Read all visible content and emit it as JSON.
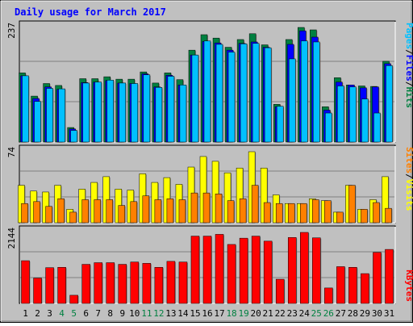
{
  "colors": {
    "background": "#c0c0c0",
    "title": "#0000ff",
    "pages": "#00c0ff",
    "files": "#0000ff",
    "hits": "#008040",
    "visits": "#ffff00",
    "sites": "#ff8000",
    "kbytes": "#ff0000",
    "weekend_label": "#008040",
    "weekday_label": "#000000"
  },
  "chart_data": [
    {
      "type": "bar",
      "title": "Daily usage for March 2017",
      "ylabel_parts": [
        "Pages",
        "/",
        "Files",
        "/",
        "Hits"
      ],
      "ymax_label": "237",
      "ylim": [
        0,
        237
      ],
      "legend_placement": "right",
      "grid": true,
      "categories": [
        "1",
        "2",
        "3",
        "4",
        "5",
        "6",
        "7",
        "8",
        "9",
        "10",
        "11",
        "12",
        "13",
        "14",
        "15",
        "16",
        "17",
        "18",
        "19",
        "20",
        "21",
        "22",
        "23",
        "24",
        "25",
        "26",
        "27",
        "28",
        "29",
        "30",
        "31"
      ],
      "weekend_days": [
        "4",
        "5",
        "11",
        "12",
        "18",
        "19",
        "25",
        "26"
      ],
      "series": [
        {
          "name": "Hits",
          "values": [
            143,
            95,
            121,
            117,
            30,
            131,
            131,
            135,
            130,
            130,
            145,
            122,
            143,
            129,
            190,
            222,
            215,
            196,
            212,
            224,
            201,
            78,
            212,
            237,
            232,
            73,
            133,
            118,
            116,
            115,
            167
          ]
        },
        {
          "name": "Files",
          "values": [
            137,
            90,
            114,
            109,
            27,
            123,
            124,
            127,
            122,
            121,
            141,
            114,
            138,
            118,
            180,
            208,
            205,
            190,
            204,
            207,
            196,
            73,
            202,
            230,
            217,
            66,
            124,
            118,
            112,
            114,
            162
          ]
        },
        {
          "name": "Pages",
          "values": [
            137,
            84,
            111,
            110,
            24,
            122,
            124,
            128,
            122,
            121,
            139,
            113,
            136,
            118,
            180,
            209,
            202,
            186,
            203,
            204,
            195,
            74,
            172,
            209,
            207,
            60,
            116,
            114,
            89,
            60,
            158
          ]
        }
      ]
    },
    {
      "type": "bar",
      "ylabel_parts": [
        "Sites",
        "/",
        "Visits"
      ],
      "ymax_label": "74",
      "ylim": [
        0,
        74
      ],
      "grid": true,
      "categories": [
        "1",
        "2",
        "3",
        "4",
        "5",
        "6",
        "7",
        "8",
        "9",
        "10",
        "11",
        "12",
        "13",
        "14",
        "15",
        "16",
        "17",
        "18",
        "19",
        "20",
        "21",
        "22",
        "23",
        "24",
        "25",
        "26",
        "27",
        "28",
        "29",
        "30",
        "31"
      ],
      "series": [
        {
          "name": "Visits",
          "values": [
            39,
            33,
            32,
            39,
            14,
            35,
            42,
            48,
            35,
            34,
            51,
            42,
            47,
            40,
            58,
            69,
            64,
            52,
            57,
            74,
            57,
            29,
            20,
            20,
            25,
            23,
            11,
            39,
            14,
            24,
            48
          ]
        },
        {
          "name": "Sites",
          "values": [
            20,
            22,
            17,
            25,
            11,
            24,
            24,
            24,
            18,
            22,
            28,
            24,
            25,
            24,
            31,
            31,
            30,
            23,
            25,
            39,
            21,
            20,
            20,
            20,
            24,
            23,
            11,
            39,
            14,
            21,
            15
          ]
        }
      ]
    },
    {
      "type": "bar",
      "ylabel_parts": [
        "KBytes"
      ],
      "ymax_label": "2144",
      "ylim": [
        0,
        2144
      ],
      "grid": true,
      "categories": [
        "1",
        "2",
        "3",
        "4",
        "5",
        "6",
        "7",
        "8",
        "9",
        "10",
        "11",
        "12",
        "13",
        "14",
        "15",
        "16",
        "17",
        "18",
        "19",
        "20",
        "21",
        "22",
        "23",
        "24",
        "25",
        "26",
        "27",
        "28",
        "29",
        "30",
        "31"
      ],
      "series": [
        {
          "name": "KBytes",
          "values": [
            1290,
            766,
            1080,
            1090,
            246,
            1180,
            1230,
            1230,
            1180,
            1250,
            1210,
            1090,
            1270,
            1250,
            2032,
            2032,
            2085,
            1780,
            1970,
            2032,
            1880,
            730,
            1990,
            2144,
            1980,
            466,
            1110,
            1090,
            900,
            1540,
            1630
          ]
        }
      ]
    }
  ]
}
